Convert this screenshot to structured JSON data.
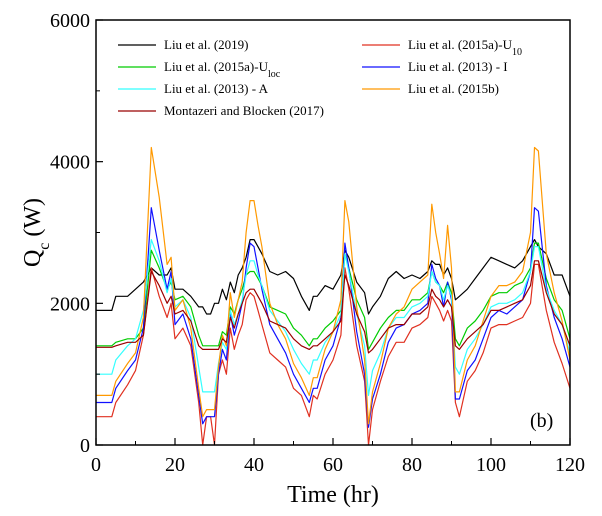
{
  "chart_data": {
    "type": "line",
    "xlabel": "Time (hr)",
    "ylabel_main": "Q",
    "ylabel_sub": "c",
    "ylabel_unit": " (W)",
    "panel_label": "(b)",
    "xlim": [
      0,
      120
    ],
    "ylim": [
      0,
      6000
    ],
    "xticks": [
      "0",
      "20",
      "40",
      "60",
      "80",
      "100",
      "120"
    ],
    "yticks": [
      "0",
      "2000",
      "4000",
      "6000"
    ],
    "x": [
      0,
      4,
      5,
      8,
      10,
      12,
      14,
      16,
      18,
      19,
      20,
      22,
      24,
      26,
      27,
      28,
      29,
      30,
      31,
      32,
      33,
      34,
      35,
      36,
      37,
      38,
      39,
      40,
      41,
      42,
      44,
      46,
      48,
      50,
      52,
      54,
      55,
      56,
      58,
      60,
      62,
      63,
      64,
      66,
      68,
      69,
      70,
      72,
      74,
      76,
      78,
      80,
      82,
      84,
      85,
      86,
      87,
      88,
      89,
      90,
      91,
      92,
      94,
      96,
      98,
      100,
      102,
      104,
      106,
      108,
      110,
      111,
      112,
      114,
      116,
      118,
      120
    ],
    "series": [
      {
        "name": "Liu et al. (2019)",
        "color": "#000000",
        "values": [
          1900,
          1900,
          2100,
          2100,
          2200,
          2300,
          2500,
          2400,
          2400,
          2500,
          2200,
          2200,
          2100,
          1950,
          1950,
          1850,
          1850,
          2000,
          2000,
          2200,
          2050,
          2300,
          2150,
          2400,
          2500,
          2650,
          2900,
          2900,
          2800,
          2700,
          2450,
          2400,
          2450,
          2350,
          2100,
          1900,
          2100,
          2100,
          2250,
          2200,
          2400,
          2750,
          2650,
          2300,
          2150,
          1850,
          1950,
          2100,
          2350,
          2450,
          2350,
          2400,
          2350,
          2450,
          2600,
          2550,
          2550,
          2400,
          2500,
          2350,
          2050,
          2100,
          2200,
          2350,
          2500,
          2650,
          2600,
          2550,
          2500,
          2600,
          2800,
          2900,
          2800,
          2700,
          2400,
          2400,
          2100
        ]
      },
      {
        "name": "Liu et al. (2015a)-U₁₀",
        "color": "#e03020",
        "values": [
          400,
          400,
          600,
          850,
          1050,
          1550,
          2500,
          2100,
          1800,
          2000,
          1500,
          1650,
          1400,
          600,
          0,
          400,
          400,
          0,
          1000,
          1200,
          1000,
          1650,
          1350,
          1550,
          1700,
          2050,
          2150,
          2100,
          1900,
          1700,
          1300,
          1200,
          1100,
          800,
          700,
          400,
          700,
          650,
          1000,
          1200,
          1550,
          2500,
          2200,
          1400,
          900,
          0,
          500,
          900,
          1250,
          1450,
          1450,
          1650,
          1700,
          1800,
          2100,
          2000,
          1900,
          1750,
          1900,
          1750,
          600,
          400,
          900,
          1050,
          1300,
          1650,
          1700,
          1700,
          1750,
          1800,
          2000,
          2550,
          2550,
          1900,
          1450,
          1150,
          800
        ]
      },
      {
        "name": "Liu et al. (2015a)-U_loc",
        "color": "#00cc00",
        "values": [
          1400,
          1400,
          1450,
          1500,
          1500,
          1650,
          2750,
          2500,
          2200,
          2300,
          2050,
          2100,
          1950,
          1550,
          1400,
          1400,
          1400,
          1400,
          1400,
          1600,
          1550,
          1950,
          1850,
          2050,
          2200,
          2400,
          2450,
          2450,
          2350,
          2250,
          1950,
          1900,
          1850,
          1650,
          1550,
          1400,
          1500,
          1500,
          1650,
          1750,
          1900,
          2700,
          2500,
          2050,
          1800,
          1350,
          1450,
          1650,
          1800,
          1900,
          1900,
          2050,
          2050,
          2150,
          2450,
          2300,
          2250,
          2150,
          2300,
          2150,
          1500,
          1400,
          1650,
          1750,
          1900,
          2100,
          2150,
          2150,
          2250,
          2300,
          2500,
          2850,
          2850,
          2350,
          2050,
          1900,
          1500
        ]
      },
      {
        "name": "Liu et al. (2013) - I",
        "color": "#1010ff",
        "values": [
          600,
          600,
          800,
          1050,
          1200,
          1650,
          3350,
          2750,
          2200,
          2450,
          1700,
          1850,
          1500,
          700,
          300,
          400,
          400,
          400,
          1000,
          1350,
          1200,
          1850,
          1550,
          1750,
          2000,
          2500,
          2850,
          2800,
          2500,
          2200,
          1700,
          1500,
          1300,
          1000,
          800,
          600,
          800,
          800,
          1200,
          1400,
          1800,
          2850,
          2500,
          1600,
          1000,
          250,
          650,
          1000,
          1450,
          1650,
          1700,
          1850,
          1900,
          2000,
          2550,
          2350,
          2250,
          1950,
          2300,
          2050,
          650,
          650,
          1050,
          1200,
          1500,
          1800,
          1900,
          1850,
          1950,
          2050,
          2450,
          3350,
          3300,
          2250,
          1800,
          1500,
          1100
        ]
      },
      {
        "name": "Liu et al. (2013) - A",
        "color": "#33ffff",
        "values": [
          1000,
          1000,
          1200,
          1400,
          1500,
          1900,
          2900,
          2600,
          2150,
          2350,
          1950,
          2050,
          1800,
          1100,
          750,
          750,
          750,
          750,
          1150,
          1450,
          1350,
          1900,
          1700,
          1850,
          2050,
          2400,
          2600,
          2600,
          2400,
          2250,
          1900,
          1750,
          1600,
          1350,
          1150,
          1000,
          1200,
          1200,
          1450,
          1600,
          1850,
          2700,
          2450,
          1850,
          1400,
          700,
          1050,
          1300,
          1650,
          1800,
          1800,
          1950,
          2000,
          2100,
          2450,
          2300,
          2250,
          2050,
          2250,
          2100,
          1100,
          1000,
          1350,
          1500,
          1700,
          1950,
          2000,
          2000,
          2050,
          2150,
          2450,
          2800,
          2800,
          2200,
          1900,
          1700,
          1300
        ]
      },
      {
        "name": "Liu et al. (2015b)",
        "color": "#ff9900",
        "values": [
          700,
          700,
          900,
          1150,
          1300,
          1800,
          4200,
          3500,
          2550,
          2650,
          1900,
          2050,
          1650,
          800,
          400,
          500,
          500,
          500,
          1100,
          1550,
          1400,
          2150,
          1800,
          2050,
          2300,
          3000,
          3450,
          3450,
          3100,
          2800,
          2000,
          1700,
          1500,
          1150,
          950,
          700,
          950,
          950,
          1350,
          1600,
          2050,
          3450,
          3150,
          1950,
          1200,
          300,
          750,
          1150,
          1650,
          1850,
          1950,
          2200,
          2300,
          2400,
          3400,
          3000,
          2700,
          2350,
          3100,
          2500,
          750,
          750,
          1200,
          1400,
          1750,
          2100,
          2250,
          2250,
          2300,
          2450,
          3000,
          4200,
          4150,
          2700,
          2150,
          1750,
          1200
        ]
      },
      {
        "name": "Montazeri and Blocken (2017)",
        "color": "#990000",
        "values": [
          1380,
          1380,
          1400,
          1450,
          1450,
          1550,
          2450,
          2250,
          2000,
          2100,
          1850,
          1900,
          1750,
          1400,
          1350,
          1350,
          1350,
          1350,
          1350,
          1500,
          1450,
          1800,
          1650,
          1850,
          2000,
          2150,
          2200,
          2200,
          2100,
          2000,
          1750,
          1700,
          1650,
          1500,
          1400,
          1350,
          1400,
          1400,
          1500,
          1600,
          1750,
          2400,
          2250,
          1850,
          1600,
          1300,
          1350,
          1500,
          1650,
          1700,
          1700,
          1850,
          1850,
          1950,
          2200,
          2100,
          2050,
          1950,
          2050,
          1950,
          1400,
          1350,
          1500,
          1600,
          1700,
          1900,
          1900,
          1950,
          2000,
          2050,
          2250,
          2600,
          2600,
          2150,
          1850,
          1700,
          1400
        ]
      }
    ],
    "legend": [
      {
        "text": "Liu et al. (2019)",
        "sub": "",
        "color": "#000000"
      },
      {
        "text": "Liu et al. (2015a)-U",
        "sub": "10",
        "color": "#e03020"
      },
      {
        "text": "Liu et al. (2015a)-U",
        "sub": "loc",
        "color": "#00cc00"
      },
      {
        "text": "Liu et al. (2013) - I",
        "sub": "",
        "color": "#1010ff"
      },
      {
        "text": "Liu et al. (2013) - A",
        "sub": "",
        "color": "#33ffff"
      },
      {
        "text": "Liu et al. (2015b)",
        "sub": "",
        "color": "#ff9900"
      },
      {
        "text": "Montazeri and Blocken (2017)",
        "sub": "",
        "color": "#990000"
      }
    ],
    "legend_placement": "top"
  }
}
